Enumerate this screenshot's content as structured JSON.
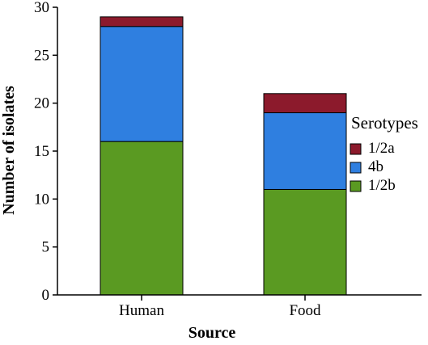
{
  "chart_data": {
    "type": "bar",
    "stacked": true,
    "categories": [
      "Human",
      "Food"
    ],
    "series": [
      {
        "name": "1/2b",
        "values": [
          16,
          11
        ],
        "color": "#5a9a22"
      },
      {
        "name": "4b",
        "values": [
          12,
          8
        ],
        "color": "#2f7fe0"
      },
      {
        "name": "1/2a",
        "values": [
          1,
          2
        ],
        "color": "#8c1a2c"
      }
    ],
    "xlabel": "Source",
    "ylabel": "Number of isolates",
    "ylim": [
      0,
      30
    ],
    "yticks": [
      0,
      5,
      10,
      15,
      20,
      25,
      30
    ],
    "grid": false,
    "legend": {
      "title": "Serotypes",
      "position": "right",
      "order": [
        "1/2a",
        "4b",
        "1/2b"
      ]
    }
  }
}
